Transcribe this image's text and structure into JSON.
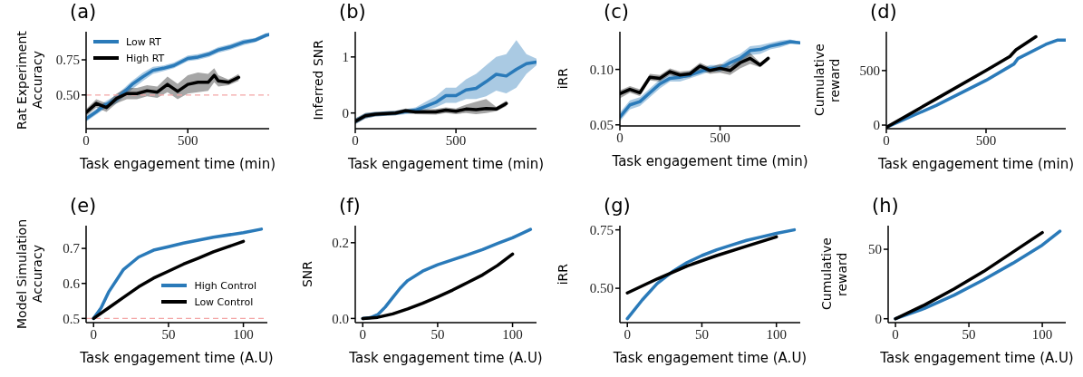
{
  "chart_data": [
    {
      "type": "line",
      "title": "(a)",
      "xlabel": "Task engagement time (min)",
      "ylabel": "Rat Experiment Accuracy",
      "xlim": [
        0,
        900
      ],
      "xticks": [
        0,
        500
      ],
      "ylim": [
        0.26,
        0.95
      ],
      "yticks": [
        {
          "value": 0.5,
          "label": "0.50"
        },
        {
          "value": 0.75,
          "label": "0.75"
        }
      ],
      "legend": "top left",
      "ref_lines": [
        {
          "axis": "y",
          "value": 0.5,
          "color": "#f4a6a6",
          "line_style": "dashed"
        }
      ],
      "series": [
        {
          "name": "Low RT",
          "color": "#2a7ab9",
          "x": [
            0,
            50,
            90,
            150,
            226,
            280,
            329,
            380,
            432,
            500,
            550,
            603,
            650,
            705,
            774,
            830,
            885,
            900
          ],
          "values": [
            0.33,
            0.38,
            0.425,
            0.47,
            0.575,
            0.63,
            0.675,
            0.69,
            0.71,
            0.76,
            0.77,
            0.79,
            0.82,
            0.84,
            0.875,
            0.89,
            0.925,
            0.93
          ],
          "lower": [
            0.31,
            0.36,
            0.4,
            0.44,
            0.54,
            0.6,
            0.65,
            0.67,
            0.69,
            0.74,
            0.75,
            0.77,
            0.8,
            0.82,
            0.855,
            0.875,
            0.91,
            0.92
          ],
          "upper": [
            0.35,
            0.4,
            0.45,
            0.5,
            0.6,
            0.66,
            0.7,
            0.71,
            0.73,
            0.78,
            0.79,
            0.81,
            0.84,
            0.86,
            0.895,
            0.905,
            0.94,
            0.94
          ]
        },
        {
          "name": "High RT",
          "color": "#000000",
          "x": [
            0,
            50,
            100,
            150,
            200,
            250,
            300,
            350,
            400,
            450,
            500,
            550,
            600,
            630,
            650,
            700,
            750
          ],
          "values": [
            0.375,
            0.44,
            0.41,
            0.475,
            0.51,
            0.51,
            0.53,
            0.52,
            0.575,
            0.525,
            0.575,
            0.59,
            0.59,
            0.64,
            0.6,
            0.59,
            0.625
          ],
          "lower": [
            0.35,
            0.41,
            0.38,
            0.44,
            0.47,
            0.47,
            0.49,
            0.48,
            0.52,
            0.47,
            0.51,
            0.52,
            0.53,
            0.59,
            0.56,
            0.57,
            0.6
          ],
          "upper": [
            0.4,
            0.47,
            0.44,
            0.51,
            0.55,
            0.55,
            0.57,
            0.56,
            0.63,
            0.58,
            0.64,
            0.66,
            0.65,
            0.69,
            0.64,
            0.61,
            0.65
          ]
        }
      ]
    },
    {
      "type": "line",
      "title": "(b)",
      "xlabel": "Task engagement time (min)",
      "ylabel": "Inferred SNR",
      "xlim": [
        0,
        900
      ],
      "xticks": [
        0,
        500
      ],
      "ylim": [
        -0.28,
        1.45
      ],
      "yticks": [
        0,
        1
      ],
      "series": [
        {
          "color": "#2a7ab9",
          "x": [
            0,
            50,
            100,
            200,
            300,
            350,
            400,
            450,
            500,
            550,
            600,
            650,
            700,
            750,
            800,
            850,
            900
          ],
          "values": [
            -0.15,
            -0.05,
            -0.02,
            0.0,
            0.05,
            0.12,
            0.19,
            0.31,
            0.31,
            0.41,
            0.44,
            0.56,
            0.69,
            0.66,
            0.78,
            0.88,
            0.91
          ],
          "lower": [
            -0.2,
            -0.1,
            -0.06,
            -0.04,
            0.0,
            0.05,
            0.1,
            0.18,
            0.18,
            0.25,
            0.25,
            0.3,
            0.4,
            0.35,
            0.45,
            0.7,
            0.85
          ],
          "upper": [
            -0.1,
            0.0,
            0.02,
            0.04,
            0.1,
            0.2,
            0.3,
            0.45,
            0.45,
            0.6,
            0.7,
            0.85,
            1.0,
            1.05,
            1.3,
            1.05,
            0.97
          ]
        },
        {
          "color": "#000000",
          "x": [
            0,
            50,
            100,
            200,
            250,
            300,
            400,
            450,
            500,
            550,
            600,
            650,
            700,
            750
          ],
          "values": [
            -0.15,
            -0.05,
            -0.02,
            0.0,
            0.04,
            0.02,
            0.02,
            0.05,
            0.03,
            0.07,
            0.06,
            0.08,
            0.07,
            0.17
          ],
          "lower": [
            -0.2,
            -0.1,
            -0.06,
            -0.04,
            0.0,
            -0.02,
            -0.03,
            0.0,
            -0.02,
            0.0,
            -0.02,
            0.0,
            0.03,
            0.12
          ],
          "upper": [
            -0.1,
            0.0,
            0.02,
            0.04,
            0.08,
            0.06,
            0.07,
            0.1,
            0.08,
            0.15,
            0.2,
            0.25,
            0.11,
            0.22
          ]
        }
      ]
    },
    {
      "type": "line",
      "title": "(c)",
      "xlabel": "Task engagement time (min)",
      "ylabel": "iRR",
      "xlim": [
        0,
        900
      ],
      "xticks": [
        0,
        500
      ],
      "ylim": [
        0.049,
        0.134
      ],
      "yticks": [
        {
          "value": 0.05,
          "label": "0.05"
        },
        {
          "value": 0.1,
          "label": "0.10"
        }
      ],
      "series": [
        {
          "color": "#2a7ab9",
          "x": [
            0,
            50,
            100,
            150,
            200,
            250,
            300,
            350,
            400,
            450,
            500,
            550,
            600,
            650,
            700,
            750,
            800,
            850,
            900
          ],
          "values": [
            0.057,
            0.068,
            0.071,
            0.079,
            0.087,
            0.092,
            0.093,
            0.095,
            0.098,
            0.101,
            0.101,
            0.106,
            0.11,
            0.117,
            0.118,
            0.121,
            0.123,
            0.125,
            0.124
          ],
          "lower": [
            0.053,
            0.064,
            0.067,
            0.075,
            0.083,
            0.089,
            0.089,
            0.092,
            0.095,
            0.098,
            0.098,
            0.102,
            0.106,
            0.113,
            0.114,
            0.118,
            0.12,
            0.123,
            0.123
          ],
          "upper": [
            0.061,
            0.072,
            0.075,
            0.083,
            0.091,
            0.095,
            0.096,
            0.098,
            0.101,
            0.104,
            0.104,
            0.11,
            0.114,
            0.121,
            0.122,
            0.124,
            0.126,
            0.127,
            0.125
          ]
        },
        {
          "color": "#000000",
          "x": [
            0,
            50,
            100,
            150,
            200,
            250,
            300,
            350,
            400,
            450,
            500,
            550,
            600,
            650,
            700,
            740
          ],
          "values": [
            0.078,
            0.082,
            0.079,
            0.093,
            0.092,
            0.098,
            0.095,
            0.096,
            0.103,
            0.099,
            0.101,
            0.099,
            0.106,
            0.11,
            0.104,
            0.11
          ],
          "lower": [
            0.074,
            0.079,
            0.076,
            0.09,
            0.089,
            0.095,
            0.092,
            0.093,
            0.099,
            0.096,
            0.097,
            0.095,
            0.101,
            0.105,
            0.102,
            0.108
          ],
          "upper": [
            0.081,
            0.085,
            0.082,
            0.096,
            0.095,
            0.101,
            0.098,
            0.099,
            0.106,
            0.102,
            0.105,
            0.103,
            0.111,
            0.115,
            0.106,
            0.112
          ]
        }
      ]
    },
    {
      "type": "line",
      "title": "(d)",
      "xlabel": "Task engagement time (min)",
      "ylabel": "Cumulative reward",
      "xlim": [
        0,
        900
      ],
      "xticks": [
        0,
        500
      ],
      "ylim": [
        -33,
        856
      ],
      "yticks": [
        0,
        500
      ],
      "series": [
        {
          "color": "#2a7ab9",
          "x": [
            0,
            250,
            500,
            640,
            660,
            800,
            860,
            900
          ],
          "values": [
            -20,
            180,
            410,
            560,
            610,
            740,
            780,
            780
          ]
        },
        {
          "color": "#000000",
          "x": [
            0,
            250,
            500,
            620,
            650,
            750
          ],
          "values": [
            -20,
            240,
            500,
            630,
            690,
            810
          ]
        }
      ]
    },
    {
      "type": "line",
      "title": "(e)",
      "xlabel": "Task engagement time (A.U)",
      "ylabel": "Model Simulation Accuracy",
      "xlim": [
        -5,
        116
      ],
      "xticks": [
        0,
        50,
        100
      ],
      "ylim": [
        0.488,
        0.765
      ],
      "yticks": [
        0.5,
        0.6,
        0.7
      ],
      "legend": "bottom right",
      "ref_lines": [
        {
          "axis": "y",
          "value": 0.5,
          "color": "#f4a6a6",
          "line_style": "dashed"
        }
      ],
      "series": [
        {
          "name": "High Control",
          "color": "#2a7ab9",
          "x": [
            0,
            5,
            10,
            20,
            30,
            40,
            50,
            60,
            80,
            100,
            112
          ],
          "values": [
            0.5,
            0.53,
            0.575,
            0.64,
            0.675,
            0.695,
            0.705,
            0.715,
            0.732,
            0.745,
            0.755
          ]
        },
        {
          "name": "Low Control",
          "color": "#000000",
          "x": [
            0,
            10,
            20,
            30,
            40,
            50,
            60,
            70,
            80,
            90,
            100
          ],
          "values": [
            0.5,
            0.53,
            0.56,
            0.59,
            0.615,
            0.635,
            0.655,
            0.672,
            0.69,
            0.705,
            0.72
          ]
        }
      ]
    },
    {
      "type": "line",
      "title": "(f)",
      "xlabel": "Task engagement time (A.U)",
      "ylabel": "SNR",
      "xlim": [
        -5,
        116
      ],
      "xticks": [
        0,
        50,
        100
      ],
      "ylim": [
        -0.011,
        0.245
      ],
      "yticks": [
        {
          "value": 0,
          "label": "0.0"
        },
        {
          "value": 0.2,
          "label": "0.2"
        }
      ],
      "series": [
        {
          "color": "#2a7ab9",
          "x": [
            0,
            5,
            10,
            15,
            20,
            25,
            30,
            40,
            50,
            60,
            70,
            80,
            90,
            100,
            112
          ],
          "values": [
            0,
            0.002,
            0.01,
            0.03,
            0.055,
            0.08,
            0.1,
            0.125,
            0.142,
            0.155,
            0.168,
            0.182,
            0.198,
            0.213,
            0.235
          ]
        },
        {
          "color": "#000000",
          "x": [
            0,
            10,
            20,
            30,
            40,
            50,
            60,
            70,
            80,
            90,
            100
          ],
          "values": [
            0,
            0.003,
            0.012,
            0.025,
            0.04,
            0.057,
            0.075,
            0.095,
            0.115,
            0.14,
            0.17
          ]
        }
      ]
    },
    {
      "type": "line",
      "title": "(g)",
      "xlabel": "Task engagement time (A.U)",
      "ylabel": "iRR",
      "xlim": [
        -5,
        116
      ],
      "xticks": [
        0,
        50,
        100
      ],
      "ylim": [
        0.353,
        0.768
      ],
      "yticks": [
        {
          "value": 0.5,
          "label": "0.50"
        },
        {
          "value": 0.75,
          "label": "0.75"
        }
      ],
      "series": [
        {
          "color": "#2a7ab9",
          "x": [
            0,
            10,
            20,
            30,
            40,
            50,
            60,
            70,
            80,
            90,
            100,
            112
          ],
          "values": [
            0.37,
            0.45,
            0.52,
            0.57,
            0.61,
            0.64,
            0.665,
            0.685,
            0.705,
            0.72,
            0.735,
            0.75
          ]
        },
        {
          "color": "#000000",
          "x": [
            0,
            20,
            40,
            60,
            80,
            100
          ],
          "values": [
            0.48,
            0.54,
            0.595,
            0.64,
            0.68,
            0.72
          ]
        }
      ]
    },
    {
      "type": "line",
      "title": "(h)",
      "xlabel": "Task engagement time (A.U)",
      "ylabel": "Cumulative reward",
      "xlim": [
        -5,
        116
      ],
      "xticks": [
        0,
        50,
        100
      ],
      "ylim": [
        -2.8,
        67
      ],
      "yticks": [
        0,
        50
      ],
      "series": [
        {
          "color": "#2a7ab9",
          "x": [
            0,
            20,
            40,
            60,
            80,
            100,
            112
          ],
          "values": [
            0,
            7.5,
            17,
            28,
            40,
            53,
            63
          ]
        },
        {
          "color": "#000000",
          "x": [
            0,
            20,
            40,
            60,
            80,
            100
          ],
          "values": [
            0,
            10,
            21.5,
            34,
            48,
            62
          ]
        }
      ]
    }
  ]
}
